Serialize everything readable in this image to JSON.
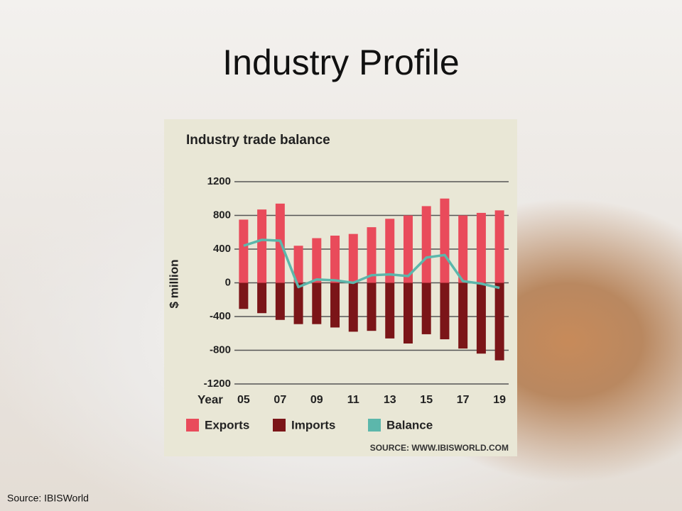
{
  "slide": {
    "title": "Industry Profile",
    "source": "Source: IBISWorld"
  },
  "chart_data": {
    "type": "bar-line",
    "title": "Industry trade balance",
    "y_label": "$ million",
    "x_label": "Year",
    "source": "SOURCE: WWW.IBISWORLD.COM",
    "categories": [
      "05",
      null,
      "07",
      null,
      "09",
      null,
      "11",
      null,
      "13",
      null,
      "15",
      null,
      "17",
      null,
      "19"
    ],
    "series": [
      {
        "name": "Exports",
        "color": "#e94b5b",
        "kind": "bar",
        "values": [
          750,
          870,
          940,
          440,
          530,
          560,
          580,
          660,
          760,
          800,
          910,
          1000,
          800,
          830,
          860
        ]
      },
      {
        "name": "Imports",
        "color": "#7b1518",
        "kind": "bar",
        "values": [
          -310,
          -360,
          -440,
          -490,
          -490,
          -530,
          -580,
          -570,
          -660,
          -720,
          -610,
          -670,
          -780,
          -840,
          -920
        ]
      },
      {
        "name": "Balance",
        "color": "#5cb7ab",
        "kind": "line",
        "values": [
          440,
          510,
          500,
          -50,
          40,
          30,
          0,
          90,
          100,
          80,
          300,
          330,
          20,
          -10,
          -60
        ]
      }
    ],
    "ylim": [
      -1200,
      1200
    ],
    "yticks": [
      -1200,
      -800,
      -400,
      0,
      400,
      800,
      1200
    ],
    "grid": true
  }
}
